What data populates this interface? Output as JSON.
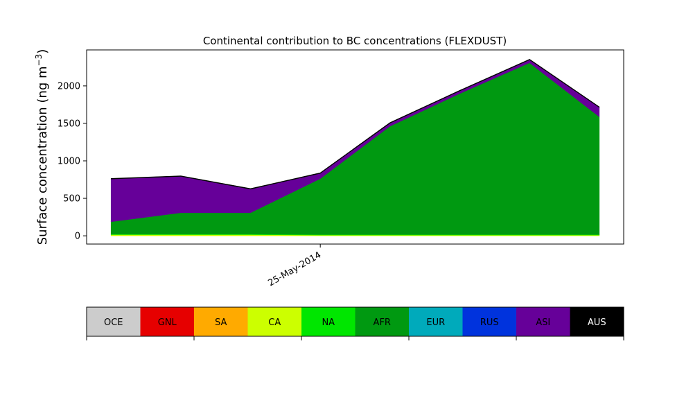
{
  "chart_data": {
    "type": "area",
    "stacked": true,
    "title": "Continental contribution to BC concentrations (FLEXDUST)",
    "ylabel_main": "Surface concentration (ng m",
    "ylabel_exp": "−3",
    "ylabel_close": ")",
    "y_ticks": [
      0,
      500,
      1000,
      1500,
      2000
    ],
    "y_tick_labels": [
      "0",
      "500",
      "1000",
      "1500",
      "2000"
    ],
    "ylim": [
      -110,
      2480
    ],
    "x_points": 8,
    "xlim": [
      -0.35,
      7.35
    ],
    "x_tick_index": 3,
    "x_tick_label": "25-May-2014",
    "grid": false,
    "series": [
      {
        "name": "OCE",
        "color": "#cccccc",
        "values": [
          0,
          0,
          0,
          0,
          0,
          0,
          0,
          0
        ]
      },
      {
        "name": "GNL",
        "color": "#e60000",
        "values": [
          0,
          0,
          0,
          0,
          0,
          0,
          0,
          0
        ]
      },
      {
        "name": "SA",
        "color": "#ffaa00",
        "values": [
          0,
          0,
          0,
          0,
          0,
          0,
          0,
          0
        ]
      },
      {
        "name": "CA",
        "color": "#ccff00",
        "values": [
          15,
          15,
          15,
          10,
          10,
          10,
          10,
          10
        ]
      },
      {
        "name": "NA",
        "color": "#00e600",
        "values": [
          8,
          8,
          8,
          8,
          8,
          8,
          8,
          8
        ]
      },
      {
        "name": "AFR",
        "color": "#009911",
        "values": [
          165,
          285,
          285,
          745,
          1445,
          1880,
          2290,
          1570
        ]
      },
      {
        "name": "EUR",
        "color": "#00aabb",
        "values": [
          0,
          0,
          0,
          0,
          0,
          0,
          0,
          0
        ]
      },
      {
        "name": "RUS",
        "color": "#0033dd",
        "values": [
          0,
          0,
          0,
          0,
          0,
          0,
          0,
          0
        ]
      },
      {
        "name": "ASI",
        "color": "#660099",
        "values": [
          570,
          485,
          315,
          70,
          40,
          35,
          40,
          125
        ]
      },
      {
        "name": "AUS",
        "color": "#000000",
        "values": [
          5,
          5,
          5,
          5,
          5,
          5,
          5,
          5
        ]
      }
    ],
    "legend": [
      {
        "label": "OCE",
        "color": "#cccccc",
        "text_color": "#000000"
      },
      {
        "label": "GNL",
        "color": "#e60000",
        "text_color": "#000000"
      },
      {
        "label": "SA",
        "color": "#ffaa00",
        "text_color": "#000000"
      },
      {
        "label": "CA",
        "color": "#ccff00",
        "text_color": "#000000"
      },
      {
        "label": "NA",
        "color": "#00e600",
        "text_color": "#000000"
      },
      {
        "label": "AFR",
        "color": "#009911",
        "text_color": "#000000"
      },
      {
        "label": "EUR",
        "color": "#00aabb",
        "text_color": "#000000"
      },
      {
        "label": "RUS",
        "color": "#0033dd",
        "text_color": "#000000"
      },
      {
        "label": "ASI",
        "color": "#660099",
        "text_color": "#000000"
      },
      {
        "label": "AUS",
        "color": "#000000",
        "text_color": "#ffffff"
      }
    ]
  }
}
